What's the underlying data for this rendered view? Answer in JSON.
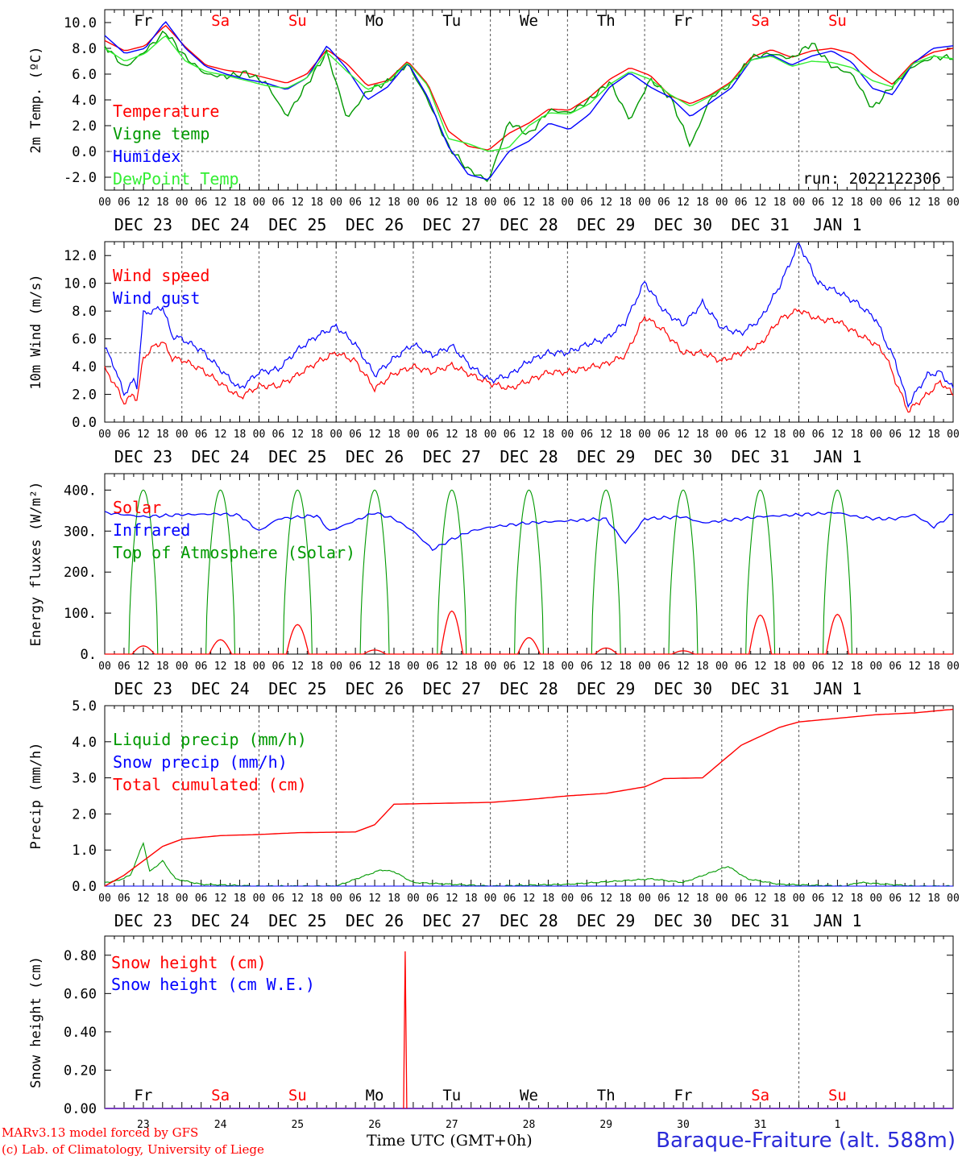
{
  "footer": {
    "model_line1": "MARv3.13 model forced by GFS",
    "model_line2": "(c) Lab. of Climatology, University of Liege",
    "time_label": "Time UTC (GMT+0h)",
    "station": "Baraque-Fraiture (alt. 588m)"
  },
  "colors": {
    "red": "#ff0000",
    "green": "#009900",
    "blue": "#0000ff",
    "lightgreen": "#33ee33",
    "grid": "#555555"
  },
  "chart_data": [
    {
      "type": "line",
      "ylabel": "2m Temp. (ºC)",
      "ylim": [
        -3,
        11
      ],
      "yticks": [
        "-2.0",
        "0.0",
        "2.0",
        "4.0",
        "6.0",
        "8.0",
        "10.0"
      ],
      "ytick_values": [
        -2,
        0,
        2,
        4,
        6,
        8,
        10
      ],
      "hline": 0,
      "x_hours": [
        0,
        6,
        9,
        12,
        15,
        18,
        24,
        30,
        36,
        42,
        48,
        54,
        60,
        63,
        66,
        72,
        78,
        84,
        90,
        96,
        102,
        108,
        114,
        120,
        126,
        132,
        138,
        144,
        150,
        156,
        162,
        168,
        174,
        180,
        186,
        192,
        198,
        204,
        210,
        216,
        222,
        228,
        234,
        240,
        246,
        252,
        258,
        264
      ],
      "annotation": "run: 2022122306",
      "day_names": [
        "Fr",
        "Sa",
        "Su",
        "Mo",
        "Tu",
        "We",
        "Th",
        "Fr",
        "Sa",
        "Su"
      ],
      "series": [
        {
          "name": "Temperature",
          "color": "#ff0000",
          "values": [
            8.6,
            7.8,
            8.2,
            9.8,
            8.1,
            6.7,
            6.3,
            6.1,
            5.7,
            5.3,
            6.0,
            7.9,
            6.8,
            5.1,
            5.5,
            7.0,
            5.2,
            1.6,
            0.4,
            0.1,
            1.4,
            2.2,
            3.3,
            3.2,
            4.2,
            5.6,
            6.5,
            5.9,
            4.3,
            3.7,
            4.4,
            5.4,
            7.3,
            7.9,
            7.3,
            7.8,
            8.0,
            7.6,
            6.2,
            5.2,
            6.9,
            7.7,
            8.0
          ],
          "x_index": [
            0,
            1,
            2,
            3,
            4,
            5,
            6,
            7,
            8,
            9,
            10,
            11,
            12,
            13,
            14,
            15,
            16,
            17,
            18,
            19,
            20,
            21,
            22,
            23,
            24,
            25,
            26,
            27,
            28,
            29,
            30,
            31,
            32,
            33,
            34,
            35,
            36,
            37,
            38,
            39,
            40,
            41,
            42
          ]
        },
        {
          "name": "Vigne temp",
          "color": "#009900",
          "values": [
            8.2,
            6.5,
            7.8,
            9.3,
            7.3,
            6.0,
            5.8,
            6.1,
            5.3,
            2.7,
            5.2,
            7.7,
            2.5,
            4.7,
            5.4,
            6.8,
            4.0,
            0.4,
            -1.4,
            -2.3,
            2.3,
            1.3,
            3.2,
            3.0,
            4.0,
            5.4,
            2.4,
            5.6,
            4.2,
            0.4,
            4.2,
            5.2,
            7.3,
            7.6,
            7.2,
            8.4,
            6.6,
            6.0,
            3.3,
            5.1,
            6.6,
            7.3,
            7.3
          ],
          "x_index": [
            0,
            1,
            2,
            3,
            4,
            5,
            6,
            7,
            8,
            9,
            10,
            11,
            12,
            13,
            14,
            15,
            16,
            17,
            18,
            19,
            20,
            21,
            22,
            23,
            24,
            25,
            26,
            27,
            28,
            29,
            30,
            31,
            32,
            33,
            34,
            35,
            36,
            37,
            38,
            39,
            40,
            41,
            42
          ]
        },
        {
          "name": "Humidex",
          "color": "#0000ff",
          "values": [
            9.0,
            7.6,
            8.0,
            10.1,
            8.0,
            6.6,
            6.0,
            5.6,
            5.3,
            4.8,
            5.7,
            8.2,
            6.4,
            4.0,
            5.0,
            6.9,
            4.2,
            0.4,
            -1.8,
            -2.2,
            0.0,
            0.8,
            2.2,
            1.7,
            2.9,
            5.0,
            6.1,
            5.0,
            4.2,
            2.7,
            3.8,
            4.9,
            7.1,
            7.5,
            6.7,
            7.4,
            7.8,
            6.9,
            4.9,
            4.4,
            6.8,
            8.0,
            8.2
          ],
          "x_index": [
            0,
            1,
            2,
            3,
            4,
            5,
            6,
            7,
            8,
            9,
            10,
            11,
            12,
            13,
            14,
            15,
            16,
            17,
            18,
            19,
            20,
            21,
            22,
            23,
            24,
            25,
            26,
            27,
            28,
            29,
            30,
            31,
            32,
            33,
            34,
            35,
            36,
            37,
            38,
            39,
            40,
            41,
            42
          ]
        },
        {
          "name": "DewPoint Temp",
          "color": "#33ee33",
          "values": [
            8.0,
            7.0,
            7.6,
            9.0,
            7.0,
            6.2,
            5.9,
            5.5,
            5.1,
            4.9,
            5.7,
            7.7,
            6.2,
            4.8,
            5.4,
            6.9,
            5.1,
            1.0,
            0.6,
            0.0,
            0.3,
            2.0,
            3.0,
            2.9,
            3.7,
            5.2,
            6.2,
            5.6,
            4.4,
            3.5,
            4.3,
            5.3,
            7.1,
            7.4,
            6.6,
            7.0,
            6.9,
            6.5,
            5.5,
            5.0,
            6.8,
            7.4,
            7.2
          ],
          "x_index": [
            0,
            1,
            2,
            3,
            4,
            5,
            6,
            7,
            8,
            9,
            10,
            11,
            12,
            13,
            14,
            15,
            16,
            17,
            18,
            19,
            20,
            21,
            22,
            23,
            24,
            25,
            26,
            27,
            28,
            29,
            30,
            31,
            32,
            33,
            34,
            35,
            36,
            37,
            38,
            39,
            40,
            41,
            42
          ]
        }
      ]
    },
    {
      "type": "line",
      "ylabel": "10m Wind (m/s)",
      "ylim": [
        0,
        13
      ],
      "yticks": [
        "0.0",
        "2.0",
        "4.0",
        "6.0",
        "8.0",
        "10.0",
        "12.0"
      ],
      "ytick_values": [
        0,
        2,
        4,
        6,
        8,
        10,
        12
      ],
      "hline": 5,
      "series": [
        {
          "name": "Wind speed",
          "color": "#ff0000",
          "values": [
            3.8,
            2.8,
            1.4,
            2.0,
            1.6,
            4.6,
            5.4,
            5.8,
            4.6,
            4.5,
            3.8,
            2.8,
            1.8,
            2.6,
            2.6,
            3.4,
            4.3,
            5.0,
            4.4,
            2.4,
            3.5,
            4.0,
            3.6,
            4.1,
            3.4,
            2.8,
            2.4,
            3.0,
            3.6,
            3.6,
            3.9,
            4.2,
            4.8,
            7.6,
            6.6,
            5.0,
            5.0,
            4.4,
            5.0,
            5.6,
            7.4,
            8.1,
            7.4,
            7.3,
            6.4,
            5.6,
            4.8,
            3.0,
            0.8,
            1.2,
            2.0,
            2.9,
            2.0,
            1.8
          ],
          "x_hours": [
            0,
            3,
            6,
            9,
            10,
            12,
            15,
            18,
            21,
            24,
            30,
            36,
            42,
            48,
            54,
            60,
            66,
            72,
            78,
            84,
            90,
            96,
            102,
            108,
            114,
            120,
            126,
            132,
            138,
            144,
            150,
            156,
            162,
            168,
            174,
            180,
            186,
            192,
            198,
            204,
            210,
            216,
            222,
            228,
            234,
            240,
            243,
            246,
            250,
            252,
            256,
            260,
            264,
            264
          ]
        },
        {
          "name": "Wind gust",
          "color": "#0000ff",
          "values": [
            5.4,
            4.0,
            2.0,
            3.0,
            2.6,
            7.8,
            8.0,
            8.3,
            6.2,
            6.0,
            5.2,
            3.8,
            2.4,
            3.6,
            3.8,
            5.2,
            6.2,
            6.9,
            5.6,
            3.4,
            4.6,
            5.6,
            4.8,
            5.5,
            4.0,
            3.0,
            3.4,
            4.4,
            5.0,
            5.0,
            5.6,
            6.0,
            7.2,
            10.1,
            8.0,
            7.0,
            8.6,
            6.8,
            6.4,
            7.4,
            9.8,
            12.9,
            10.0,
            9.4,
            8.6,
            7.4,
            5.8,
            4.4,
            1.2,
            2.0,
            3.4,
            3.6,
            2.4,
            2.2
          ],
          "x_hours": [
            0,
            3,
            6,
            9,
            10,
            12,
            15,
            18,
            21,
            24,
            30,
            36,
            42,
            48,
            54,
            60,
            66,
            72,
            78,
            84,
            90,
            96,
            102,
            108,
            114,
            120,
            126,
            132,
            138,
            144,
            150,
            156,
            162,
            168,
            174,
            180,
            186,
            192,
            198,
            204,
            210,
            216,
            222,
            228,
            234,
            240,
            243,
            246,
            250,
            252,
            256,
            260,
            264,
            264
          ]
        }
      ]
    },
    {
      "type": "line",
      "ylabel": "Energy fluxes (W/m²)",
      "ylim": [
        0,
        440
      ],
      "yticks": [
        "0.",
        "100.",
        "200.",
        "300.",
        "400."
      ],
      "ytick_values": [
        0,
        100,
        200,
        300,
        400
      ],
      "series": [
        {
          "name": "Solar",
          "color": "#ff0000",
          "peaks": [
            20,
            35,
            72,
            10,
            105,
            40,
            15,
            8,
            95,
            97
          ]
        },
        {
          "name": "Infrared",
          "color": "#0000ff",
          "values": [
            345,
            335,
            340,
            342,
            338,
            300,
            330,
            338,
            300,
            345,
            330,
            300,
            255,
            280,
            300,
            310,
            320,
            325,
            330,
            270,
            330,
            335,
            320,
            325,
            335,
            340,
            345,
            335,
            330,
            330,
            340,
            310,
            342
          ],
          "x_hours": [
            0,
            12,
            24,
            36,
            42,
            48,
            54,
            66,
            70,
            84,
            90,
            96,
            102,
            108,
            114,
            120,
            132,
            144,
            156,
            162,
            168,
            180,
            186,
            192,
            204,
            216,
            228,
            234,
            240,
            246,
            252,
            258,
            264
          ]
        },
        {
          "name": "Top of Atmosphere (Solar)",
          "color": "#009900",
          "peak": 400
        }
      ]
    },
    {
      "type": "line",
      "ylabel": "Precip (mm/h)",
      "ylim": [
        0,
        5
      ],
      "yticks": [
        "0.0",
        "1.0",
        "2.0",
        "3.0",
        "4.0",
        "5.0"
      ],
      "ytick_values": [
        0,
        1,
        2,
        3,
        4,
        5
      ],
      "series": [
        {
          "name": "Liquid precip (mm/h)",
          "color": "#009900",
          "values": [
            0.1,
            0.15,
            0.3,
            1.2,
            0.4,
            0.7,
            0.2,
            0.05,
            0.0,
            0.0,
            0.45,
            0.4,
            0.1,
            0.0,
            0.05,
            0.2,
            0.1,
            0.55,
            0.2,
            0.05,
            0.0,
            0.1,
            0.0,
            0.0
          ],
          "x_hours": [
            0,
            4,
            8,
            12,
            14,
            18,
            22,
            30,
            48,
            72,
            86,
            90,
            96,
            120,
            144,
            170,
            180,
            194,
            200,
            210,
            230,
            235,
            252,
            264
          ]
        },
        {
          "name": "Snow precip (mm/h)",
          "color": "#0000ff"
        },
        {
          "name": "Total cumulated (cm)",
          "color": "#ff0000",
          "values": [
            0.0,
            0.3,
            0.7,
            1.1,
            1.3,
            1.4,
            1.43,
            1.48,
            1.5,
            1.7,
            2.27,
            2.3,
            2.32,
            2.4,
            2.5,
            2.57,
            2.75,
            2.98,
            3.0,
            3.3,
            3.9,
            4.4,
            4.55,
            4.65,
            4.75,
            4.8,
            4.9
          ],
          "x_hours": [
            0,
            6,
            12,
            18,
            24,
            36,
            48,
            60,
            78,
            84,
            90,
            108,
            120,
            132,
            144,
            156,
            168,
            174,
            186,
            190,
            198,
            210,
            216,
            228,
            240,
            252,
            264
          ]
        }
      ]
    },
    {
      "type": "line",
      "ylabel": "Snow height (cm)",
      "ylim": [
        0,
        0.9
      ],
      "yticks": [
        "0.00",
        "0.20",
        "0.40",
        "0.60",
        "0.80"
      ],
      "ytick_values": [
        0,
        0.2,
        0.4,
        0.6,
        0.8
      ],
      "series": [
        {
          "name": "Snow height (cm)",
          "color": "#ff0000",
          "spike_hour": 93.5,
          "spike_value": 0.82
        },
        {
          "name": "Snow height (cm W.E.)",
          "color": "#0000ff"
        }
      ],
      "day_names": [
        "Fr",
        "Sa",
        "Su",
        "Mo",
        "Tu",
        "We",
        "Th",
        "Fr",
        "Sa",
        "Su"
      ],
      "day_numbers": [
        "23",
        "24",
        "25",
        "26",
        "27",
        "28",
        "29",
        "30",
        "31",
        "1"
      ]
    }
  ],
  "x_axis": {
    "hour_ticks": [
      "00",
      "06",
      "12",
      "18"
    ],
    "dates": [
      "DEC 23",
      "DEC 24",
      "DEC 25",
      "DEC 26",
      "DEC 27",
      "DEC 28",
      "DEC 29",
      "DEC 30",
      "DEC 31",
      "JAN 1"
    ],
    "weekend_day_indices": [
      1,
      2,
      8,
      9
    ]
  }
}
